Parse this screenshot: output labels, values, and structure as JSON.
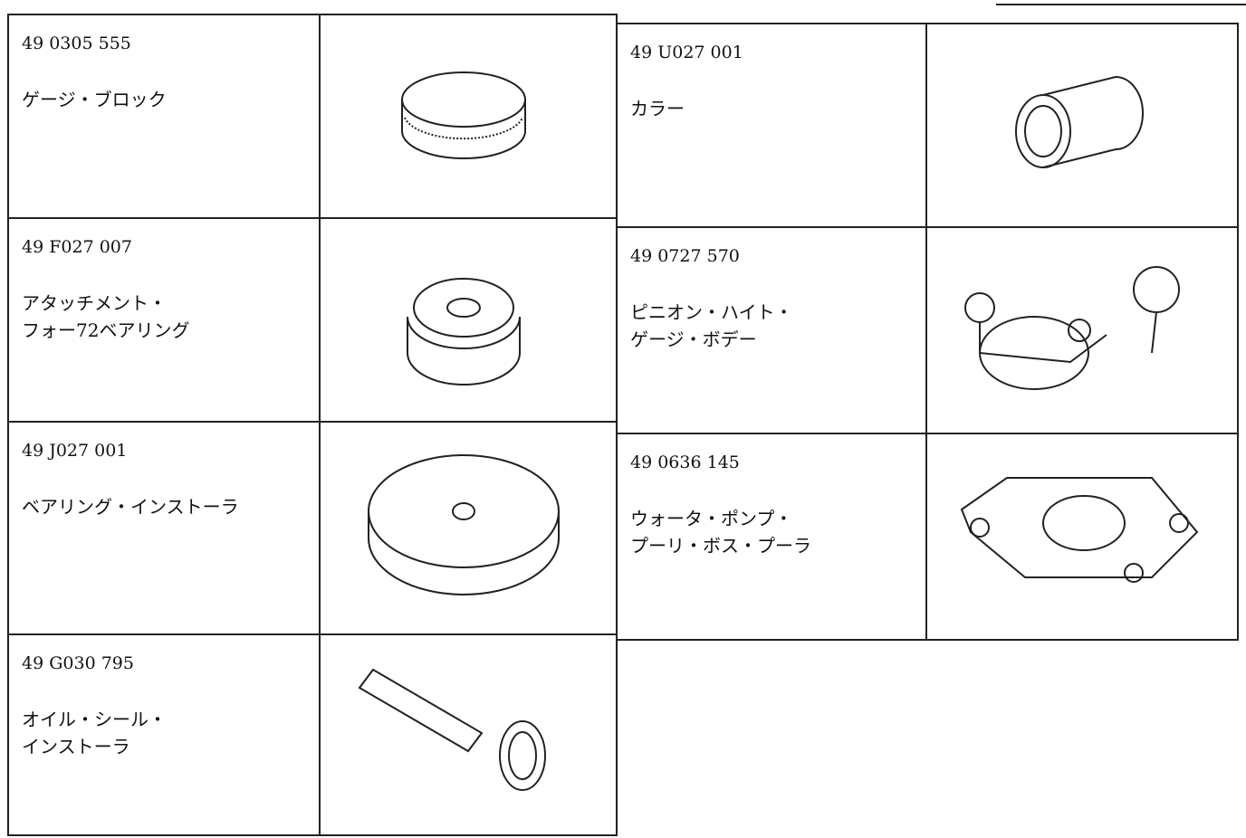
{
  "items": [
    {
      "part_number": "49 0305 555",
      "name": [
        "ゲージ・ブロック"
      ]
    },
    {
      "part_number": "49 U027 001",
      "name": [
        "カラー"
      ]
    },
    {
      "part_number": "49 F027 007",
      "name": [
        "アタッチメント・",
        "フォー72ベアリング"
      ]
    },
    {
      "part_number": "49 0727 570",
      "name": [
        "ピニオン・ハイト・",
        "ゲージ・ボデー"
      ]
    },
    {
      "part_number": "49 J027 001",
      "name": [
        "ベアリング・インストーラ"
      ]
    },
    {
      "part_number": "49 0636 145",
      "name": [
        "ウォータ・ポンプ・",
        "プーリ・ボス・プーラ"
      ]
    },
    {
      "part_number": "49 G030 795",
      "name": [
        "オイル・シール・",
        "インストーラ"
      ]
    }
  ]
}
